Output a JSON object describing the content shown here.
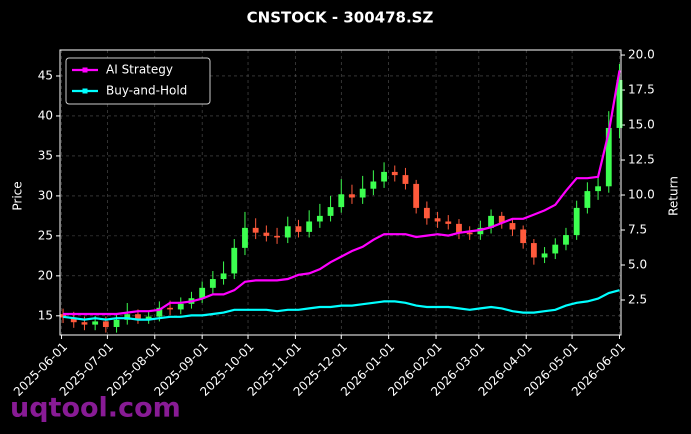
{
  "chart_data": {
    "type": "candlestick",
    "title": "CNSTOCK - 300478.SZ",
    "watermark": "uqtool.com",
    "x": [
      "2025-06-02",
      "2025-06-09",
      "2025-06-16",
      "2025-06-23",
      "2025-06-30",
      "2025-07-07",
      "2025-07-14",
      "2025-07-21",
      "2025-07-28",
      "2025-08-04",
      "2025-08-11",
      "2025-08-18",
      "2025-08-25",
      "2025-09-01",
      "2025-09-08",
      "2025-09-15",
      "2025-09-22",
      "2025-09-29",
      "2025-10-06",
      "2025-10-13",
      "2025-10-20",
      "2025-10-27",
      "2025-11-03",
      "2025-11-10",
      "2025-11-17",
      "2025-11-24",
      "2025-12-01",
      "2025-12-08",
      "2025-12-15",
      "2025-12-22",
      "2025-12-29",
      "2026-01-05",
      "2026-01-12",
      "2026-01-19",
      "2026-01-26",
      "2026-02-02",
      "2026-02-09",
      "2026-02-16",
      "2026-02-23",
      "2026-03-02",
      "2026-03-09",
      "2026-03-16",
      "2026-03-23",
      "2026-03-30",
      "2026-04-06",
      "2026-04-13",
      "2026-04-20",
      "2026-04-27",
      "2026-05-04",
      "2026-05-11",
      "2026-05-18",
      "2026-05-25",
      "2026-06-01"
    ],
    "open": [
      15.2,
      14.8,
      14.2,
      13.9,
      14.3,
      13.6,
      14.5,
      15.2,
      14.6,
      14.9,
      16.0,
      15.8,
      16.5,
      17.2,
      18.5,
      19.6,
      20.3,
      23.5,
      26.0,
      25.4,
      25.0,
      24.8,
      26.2,
      25.5,
      26.8,
      27.5,
      28.6,
      30.2,
      29.8,
      30.9,
      31.8,
      33.0,
      32.6,
      31.5,
      28.5,
      27.2,
      26.8,
      26.5,
      25.4,
      25.2,
      26.0,
      27.5,
      26.6,
      25.8,
      24.1,
      22.3,
      22.8,
      23.9,
      25.1,
      28.5,
      30.6,
      31.2,
      38.5
    ],
    "high": [
      15.9,
      15.5,
      14.9,
      15.0,
      14.9,
      15.3,
      16.6,
      15.8,
      15.6,
      16.8,
      16.9,
      17.3,
      18.0,
      19.3,
      20.6,
      21.8,
      24.6,
      28.0,
      27.2,
      26.3,
      26.0,
      27.4,
      27.0,
      28.2,
      29.0,
      30.0,
      32.1,
      31.4,
      32.5,
      33.2,
      34.2,
      33.8,
      33.5,
      32.0,
      29.3,
      28.0,
      27.6,
      27.1,
      26.2,
      26.9,
      28.3,
      28.0,
      27.2,
      26.3,
      24.6,
      23.6,
      24.7,
      26.0,
      29.4,
      31.7,
      32.5,
      40.6,
      46.5
    ],
    "low": [
      14.1,
      13.5,
      13.2,
      13.2,
      12.9,
      12.9,
      13.9,
      14.0,
      14.0,
      14.3,
      15.1,
      15.2,
      15.9,
      16.6,
      17.8,
      18.9,
      19.6,
      22.6,
      24.6,
      24.3,
      24.0,
      24.1,
      24.8,
      24.8,
      26.0,
      26.8,
      27.9,
      29.0,
      29.0,
      30.1,
      31.0,
      31.8,
      30.8,
      27.8,
      26.4,
      26.0,
      25.8,
      24.6,
      24.5,
      24.5,
      25.3,
      25.9,
      25.0,
      23.4,
      21.4,
      21.6,
      22.1,
      23.2,
      24.5,
      27.8,
      29.5,
      30.4,
      37.2
    ],
    "close": [
      14.8,
      14.2,
      13.9,
      14.3,
      13.6,
      14.5,
      15.2,
      14.6,
      14.9,
      16.0,
      15.8,
      16.5,
      17.2,
      18.5,
      19.6,
      20.3,
      23.5,
      26.0,
      25.4,
      25.0,
      24.8,
      26.2,
      25.5,
      26.8,
      27.5,
      28.6,
      30.2,
      29.8,
      30.9,
      31.8,
      33.0,
      32.6,
      31.5,
      28.5,
      27.2,
      26.8,
      26.5,
      25.4,
      25.2,
      26.0,
      27.5,
      26.6,
      25.8,
      24.1,
      22.3,
      22.8,
      23.9,
      25.1,
      28.5,
      30.6,
      31.2,
      38.5,
      44.5
    ],
    "up_color": "#3cff50",
    "down_color": "#ff5a3c",
    "series": [
      {
        "name": "AI Strategy",
        "color": "#ff00ff",
        "axis": "y2",
        "values": [
          1.5,
          1.5,
          1.5,
          1.5,
          1.5,
          1.5,
          1.6,
          1.7,
          1.7,
          1.8,
          2.3,
          2.3,
          2.4,
          2.6,
          2.9,
          2.9,
          3.2,
          3.8,
          3.9,
          3.9,
          3.9,
          4.0,
          4.3,
          4.4,
          4.7,
          5.2,
          5.6,
          6.0,
          6.3,
          6.8,
          7.2,
          7.2,
          7.2,
          7.0,
          7.1,
          7.2,
          7.1,
          7.3,
          7.4,
          7.5,
          7.7,
          8.0,
          8.3,
          8.3,
          8.6,
          8.9,
          9.3,
          10.3,
          11.2,
          11.2,
          11.3,
          14.5,
          18.9
        ]
      },
      {
        "name": "Buy-and-Hold",
        "color": "#00ffff",
        "axis": "y2",
        "values": [
          1.3,
          1.2,
          1.1,
          1.2,
          1.1,
          1.2,
          1.2,
          1.1,
          1.1,
          1.2,
          1.3,
          1.3,
          1.4,
          1.4,
          1.5,
          1.6,
          1.8,
          1.8,
          1.8,
          1.8,
          1.7,
          1.8,
          1.8,
          1.9,
          2.0,
          2.0,
          2.1,
          2.1,
          2.2,
          2.3,
          2.4,
          2.4,
          2.3,
          2.1,
          2.0,
          2.0,
          2.0,
          1.9,
          1.8,
          1.9,
          2.0,
          1.9,
          1.7,
          1.6,
          1.6,
          1.7,
          1.8,
          2.1,
          2.3,
          2.4,
          2.6,
          3.0,
          3.2
        ]
      }
    ],
    "xlim": [
      "2025-05-31",
      "2026-06-02"
    ],
    "xticks": [
      "2025-06-01",
      "2025-07-01",
      "2025-08-01",
      "2025-09-01",
      "2025-10-01",
      "2025-11-01",
      "2025-12-01",
      "2026-01-01",
      "2026-02-01",
      "2026-03-01",
      "2026-04-01",
      "2026-05-01",
      "2026-06-01"
    ],
    "ylabel": "Price",
    "ylim": [
      12.6,
      48.25
    ],
    "yticks": [
      15,
      20,
      25,
      30,
      35,
      40,
      45
    ],
    "y2label": "Return",
    "y2lim": [
      0,
      20.36
    ],
    "y2ticks": [
      2.5,
      {
        "value": 5,
        "label": "5.0"
      },
      7.5,
      {
        "value": 10,
        "label": "10.0"
      },
      12.5,
      {
        "value": 15,
        "label": "15.0"
      },
      17.5,
      {
        "value": 20,
        "label": "20.0"
      }
    ],
    "grid": true,
    "legend": "upper left"
  }
}
